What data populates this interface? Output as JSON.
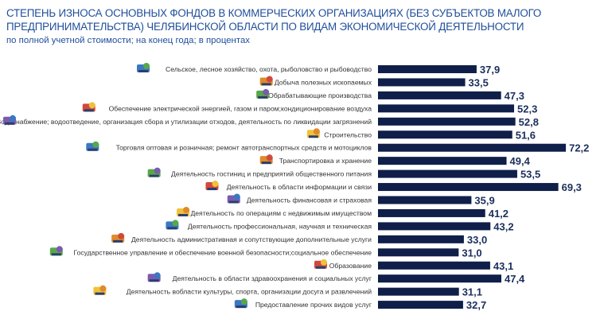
{
  "title": "СТЕПЕНЬ ИЗНОСА ОСНОВНЫХ ФОНДОВ В КОММЕРЧЕСКИХ ОРГАНИЗАЦИЯХ (БЕЗ СУБЪЕКТОВ МАЛОГО ПРЕДПРИНИМАТЕЛЬСТВА) ЧЕЛЯБИНСКОЙ ОБЛАСТИ ПО ВИДАМ ЭКОНОМИЧЕСКОЙ ДЕЯТЕЛЬНОСТИ",
  "subtitle": "по полной учетной стоимости; на конец года; в процентах",
  "colors": {
    "title": "#1f4e9b",
    "bar": "#0f1f4a",
    "value": "#1b2f5c",
    "label": "#333333"
  },
  "chart_data": {
    "type": "bar",
    "orientation": "horizontal",
    "title": "СТЕПЕНЬ ИЗНОСА ОСНОВНЫХ ФОНДОВ В КОММЕРЧЕСКИХ ОРГАНИЗАЦИЯХ (БЕЗ СУБЪЕКТОВ МАЛОГО ПРЕДПРИНИМАТЕЛЬСТВА) ЧЕЛЯБИНСКОЙ ОБЛАСТИ ПО ВИДАМ ЭКОНОМИЧЕСКОЙ ДЕЯТЕЛЬНОСТИ",
    "subtitle": "по полной учетной стоимости; на конец года; в процентах",
    "xlabel": "",
    "ylabel": "",
    "grid": false,
    "legend": "none",
    "categories": [
      "Сельское, лесное хозяйство, охота, рыболовство и рыбоводство",
      "Добыча полезных ископаемых",
      "Обрабатывающие производства",
      "Обеспечение электрической энергией, газом и паром;кондиционирование воздуха",
      "Водоснабжение; водоотведение, организация сбора и утилизации отходов, деятельность по ликвидации загрязнений",
      "Строительство",
      "Торговля оптовая и розничная; ремонт автотранспортных средств и мотоциклов",
      "Транспортировка и хранение",
      "Деятельность гостиниц и предприятий общественного питания",
      "Деятельность в области информации и связи",
      "Деятельность финансовая и страховая",
      "Деятельность по операциям с недвижимым имуществом",
      "Деятельность профессиональная, научная и техническая",
      "Деятельность административная и сопутствующие дополнительные услуги",
      "Государственное управление и обеспечение военной безопасности;социальное обеспечение",
      "Образование",
      "Деятельность в области здравоохранения и социальных услуг",
      "Деятельность вобласти культуры, спорта, организации досуга и развлечений",
      "Предоставление прочих видов услуг"
    ],
    "values": [
      37.9,
      33.5,
      47.3,
      52.3,
      52.8,
      51.6,
      72.2,
      49.4,
      53.5,
      69.3,
      35.9,
      41.2,
      43.2,
      33.0,
      31.0,
      43.1,
      47.4,
      31.1,
      32.7
    ],
    "value_labels": [
      "37,9",
      "33,5",
      "47,3",
      "52,3",
      "52,8",
      "51,6",
      "72,2",
      "49,4",
      "53,5",
      "69,3",
      "35,9",
      "41,2",
      "43,2",
      "33,0",
      "31,0",
      "43,1",
      "47,4",
      "31,1",
      "32,7"
    ],
    "icons": [
      "agriculture-icon",
      "mining-icon",
      "manufacturing-gear-icon",
      "electricity-icon",
      "water-supply-icon",
      "construction-icon",
      "car-trade-icon",
      "transport-bus-icon",
      "hospitality-icon",
      "telecom-phone-icon",
      "finance-money-icon",
      "real-estate-house-icon",
      "science-microscope-icon",
      "office-building-icon",
      "officer-person-icon",
      "graduation-cap-icon",
      "healthcare-icon",
      "culture-sport-icon",
      "service-worker-icon"
    ]
  }
}
